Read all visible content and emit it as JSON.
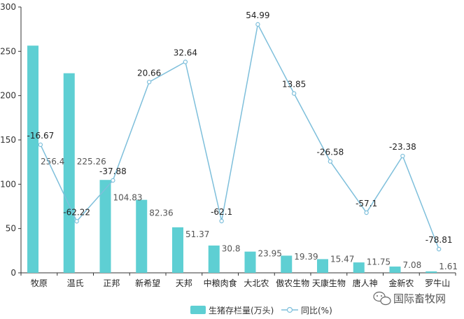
{
  "chart_data": {
    "type": "bar",
    "categories": [
      "牧原",
      "温氏",
      "正邦",
      "新希望",
      "天邦",
      "中粮肉食",
      "大北农",
      "傲农生物",
      "天康生物",
      "唐人神",
      "金新农",
      "罗牛山"
    ],
    "y_ticks": [
      "0",
      "50",
      "100",
      "150",
      "200",
      "250",
      "300"
    ],
    "ylim": [
      0,
      300
    ],
    "grid": false,
    "legend_position": "bottom-center",
    "series": [
      {
        "name": "生猪存栏量(万头)",
        "type": "bar",
        "color": "#5ECFD3",
        "values": [
          256.4,
          225.26,
          104.83,
          82.36,
          51.37,
          30.8,
          23.95,
          19.39,
          15.47,
          11.75,
          7.08,
          1.61
        ],
        "labels": [
          "256.4",
          "225.26",
          "104.83",
          "82.36",
          "51.37",
          "30.8",
          "23.95",
          "19.39",
          "15.47",
          "11.75",
          "7.08",
          "1.61"
        ]
      },
      {
        "name": "同比(%)",
        "type": "line",
        "color": "#7EBFDB",
        "values": [
          -16.67,
          -62.22,
          -37.88,
          20.66,
          32.64,
          -62.1,
          54.99,
          13.85,
          -26.58,
          -57.1,
          -23.38,
          -78.81
        ],
        "labels": [
          "-16.67",
          "-62.22",
          "-37.88",
          "20.66",
          "32.64",
          "-62.1",
          "54.99",
          "13.85",
          "-26.58",
          "-57.1",
          "-23.38",
          "-78.81"
        ]
      }
    ]
  },
  "watermark": {
    "icon": "wechat-icon",
    "text": "国际畜牧网"
  }
}
